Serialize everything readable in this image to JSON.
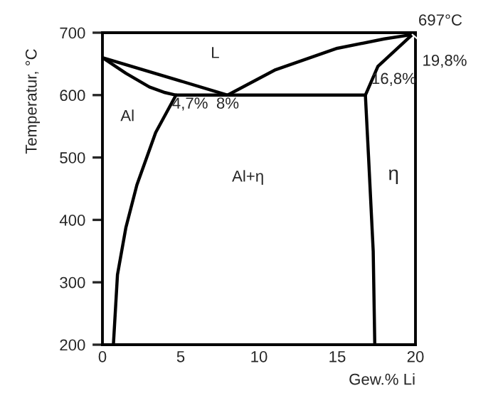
{
  "chart_data": {
    "type": "line",
    "xlabel": "Gew.% Li",
    "ylabel": "Temperatur, °C",
    "xlim": [
      0,
      20
    ],
    "ylim": [
      200,
      700
    ],
    "xticks": [
      0,
      5,
      10,
      15,
      20
    ],
    "yticks": [
      200,
      300,
      400,
      500,
      600,
      700
    ],
    "grid": false,
    "legend": false,
    "marker": "none",
    "line_style": "solid",
    "series": [
      {
        "color": "#000000",
        "x": [
          0,
          8,
          11,
          15,
          18,
          19.8
        ],
        "values": [
          660,
          600,
          640,
          675,
          690,
          697
        ]
      },
      {
        "color": "#000000",
        "x": [
          0,
          1.5,
          3.0,
          4.0,
          4.7,
          16.8,
          17.6,
          19.8
        ],
        "values": [
          660,
          635,
          613,
          604,
          600,
          600,
          646,
          697
        ]
      },
      {
        "color": "#000000",
        "x": [
          4.7,
          3.4,
          2.2,
          1.5,
          0.96,
          0.7
        ],
        "values": [
          600,
          540,
          456,
          388,
          312,
          200
        ]
      },
      {
        "color": "#000000",
        "x": [
          16.8,
          17.0,
          17.3,
          17.4
        ],
        "values": [
          600,
          502,
          350,
          200
        ]
      }
    ],
    "annotations": [
      "L",
      "Al",
      "Al+η",
      "η",
      {
        "text": "4,7%",
        "x": 4.7,
        "y": 600
      },
      {
        "text": "8%",
        "x": 8,
        "y": 600
      },
      {
        "text": "16,8%",
        "x": 16.8,
        "y": 600
      },
      {
        "text": "697°C",
        "x": 19.8,
        "y": 697
      },
      {
        "text": "19,8%",
        "x": 19.8,
        "y": 697
      }
    ]
  }
}
